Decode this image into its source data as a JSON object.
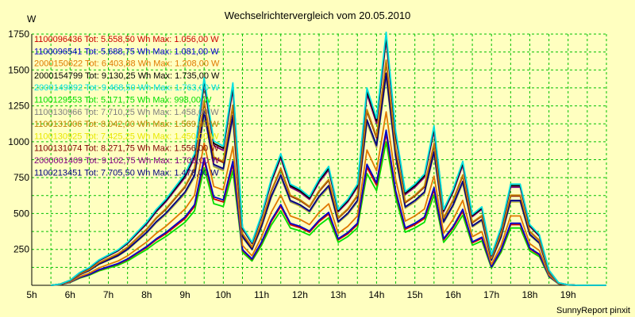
{
  "chart_data": {
    "type": "line",
    "title": "Wechselrichtervergleich vom 20.05.2010",
    "ylabel": "W",
    "xlabel": "",
    "x_tick_labels": [
      "5h",
      "6h",
      "7h",
      "8h",
      "9h",
      "10h",
      "11h",
      "12h",
      "13h",
      "14h",
      "15h",
      "16h",
      "17h",
      "18h",
      "19h"
    ],
    "y_ticks": [
      250,
      500,
      750,
      1000,
      1250,
      1500,
      1750
    ],
    "ylim": [
      0,
      1750
    ],
    "xlim": [
      5,
      20
    ],
    "grid": true,
    "legend_position": "top-left",
    "footer": "SunnyReport pinxit",
    "x": [
      5.5,
      5.75,
      6.0,
      6.25,
      6.5,
      6.75,
      7.0,
      7.25,
      7.5,
      7.75,
      8.0,
      8.25,
      8.5,
      8.75,
      9.0,
      9.25,
      9.5,
      9.75,
      10.0,
      10.25,
      10.5,
      10.75,
      11.0,
      11.25,
      11.5,
      11.75,
      12.0,
      12.25,
      12.5,
      12.75,
      13.0,
      13.25,
      13.5,
      13.75,
      14.0,
      14.25,
      14.5,
      14.75,
      15.0,
      15.25,
      15.5,
      15.75,
      16.0,
      16.25,
      16.5,
      16.75,
      17.0,
      17.25,
      17.5,
      17.75,
      18.0,
      18.25,
      18.5,
      18.75,
      19.0,
      19.25,
      19.5,
      20.0
    ],
    "shape": [
      0,
      0.005,
      0.02,
      0.05,
      0.07,
      0.1,
      0.12,
      0.14,
      0.17,
      0.21,
      0.25,
      0.3,
      0.34,
      0.39,
      0.44,
      0.52,
      0.82,
      0.57,
      0.55,
      0.8,
      0.23,
      0.17,
      0.28,
      0.42,
      0.52,
      0.4,
      0.38,
      0.35,
      0.42,
      0.47,
      0.3,
      0.34,
      0.4,
      0.78,
      0.66,
      1.0,
      0.61,
      0.37,
      0.4,
      0.44,
      0.63,
      0.3,
      0.38,
      0.49,
      0.28,
      0.31,
      0.12,
      0.23,
      0.4,
      0.4,
      0.24,
      0.2,
      0.06,
      0.01,
      0.002,
      0,
      0,
      0
    ],
    "series": [
      {
        "name": "1100096436",
        "label": "1100096436 Tot: 5.558,50 Wh Max: 1.056,00 W",
        "color": "#cc0000",
        "peak": 1056
      },
      {
        "name": "1100096541",
        "label": "1100096541 Tot: 5.688,75 Wh Max: 1.081,00 W",
        "color": "#0000cc",
        "peak": 1081
      },
      {
        "name": "2000150622",
        "label": "2000150622 Tot: 6.403,88 Wh Max: 1.208,00 W",
        "color": "#e07800",
        "peak": 1208
      },
      {
        "name": "2000154799",
        "label": "2000154799 Tot: 9.130,25 Wh Max: 1.735,00 W",
        "color": "#000000",
        "peak": 1735
      },
      {
        "name": "2000149892",
        "label": "2000149892 Tot: 9.468,50 Wh Max: 1.763,00 W",
        "color": "#00e0e0",
        "peak": 1763
      },
      {
        "name": "1100129553",
        "label": "1100129553 Tot: 5.171,75 Wh Max: 998,00 W",
        "color": "#00e000",
        "peak": 998
      },
      {
        "name": "1100130966",
        "label": "1100130966 Tot: 7.710,25 Wh Max: 1.458,00 W",
        "color": "#808080",
        "peak": 1458
      },
      {
        "name": "1100131006",
        "label": "1100131006 Tot: 8.042,00 Wh Max: 1.569,00 W",
        "color": "#c08000",
        "peak": 1569
      },
      {
        "name": "1100130925",
        "label": "1100130925 Tot: 7.425,25 Wh Max: 1.450,00 W",
        "color": "#e8e800",
        "peak": 1450
      },
      {
        "name": "1100131074",
        "label": "1100131074 Tot: 8.271,75 Wh Max: 1.556,00 W",
        "color": "#800000",
        "peak": 1556
      },
      {
        "name": "2000001409",
        "label": "2000001409 Tot: 9.102,75 Wh Max: 1.708,00 W",
        "color": "#800080",
        "peak": 1708
      },
      {
        "name": "1100213451",
        "label": "1100213451 Tot: 7.705,50 Wh Max: 1.478,00 W",
        "color": "#000080",
        "peak": 1478
      }
    ],
    "colors": {
      "background": "#ffffc0",
      "grid": "#00c000",
      "axis": "#000000"
    }
  }
}
